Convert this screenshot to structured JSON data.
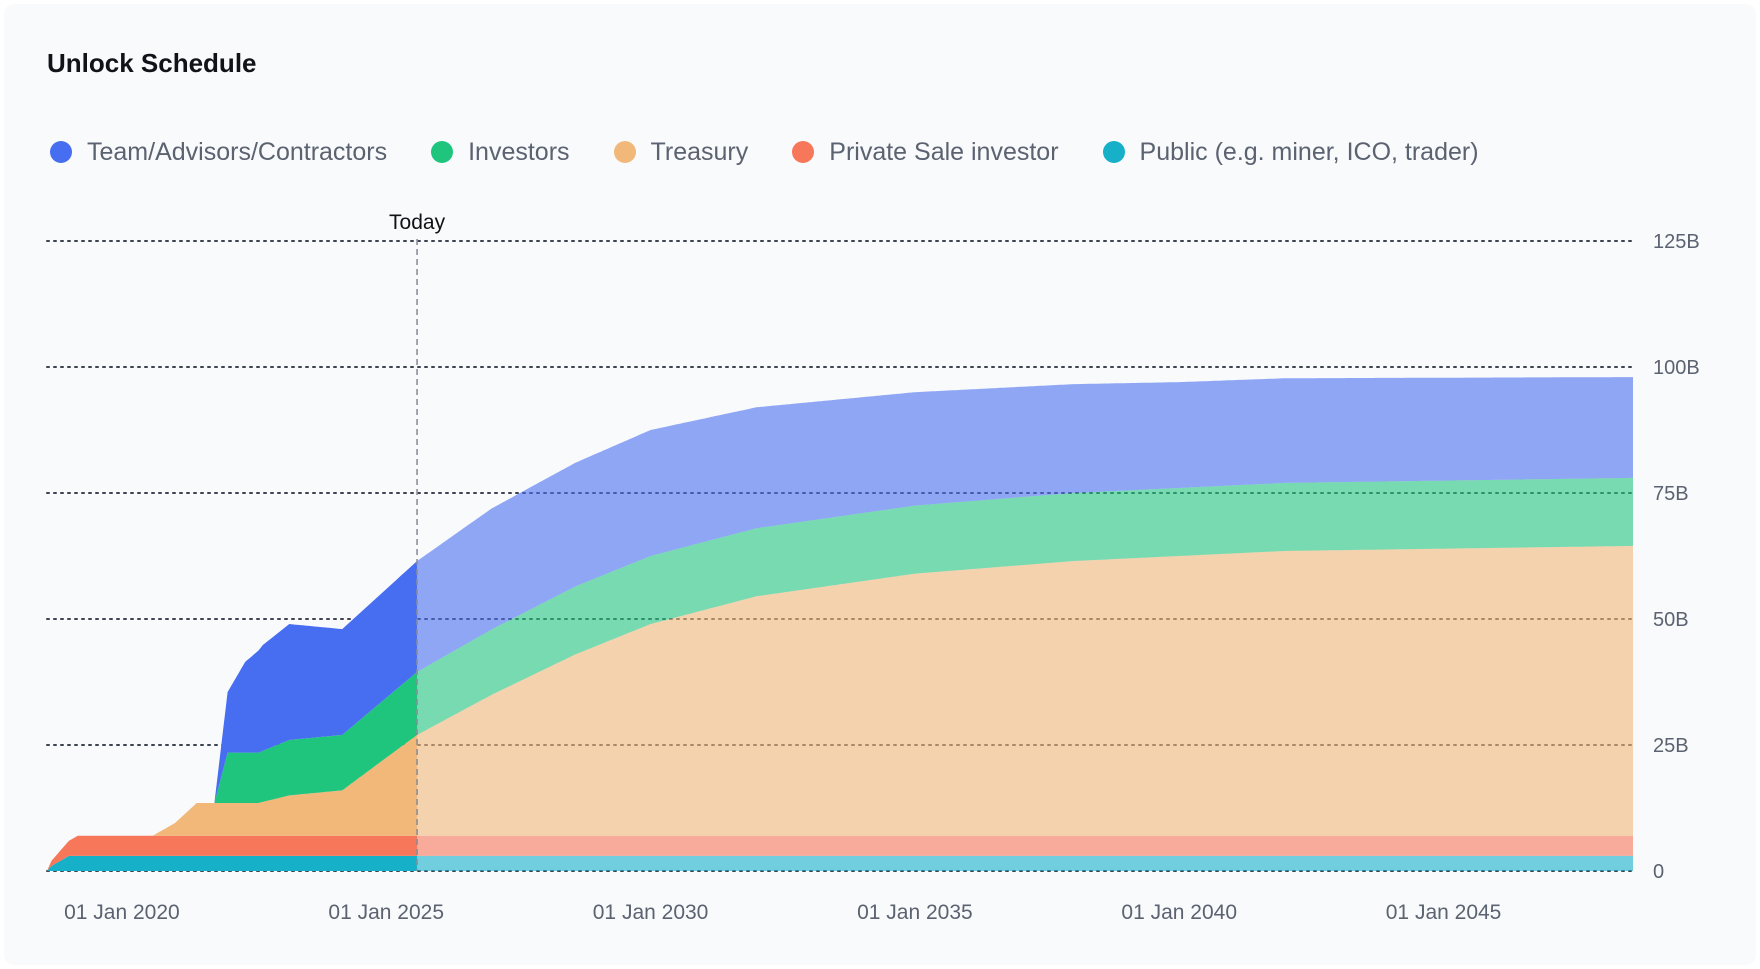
{
  "chart_data": {
    "type": "area",
    "stacked": true,
    "title": "Unlock Schedule",
    "x_ticks": [
      "01 Jan 2020",
      "01 Jan 2025",
      "01 Jan 2030",
      "01 Jan 2035",
      "01 Jan 2040",
      "01 Jan 2045"
    ],
    "y_ticks": [
      "0",
      "25B",
      "50B",
      "75B",
      "100B",
      "125B"
    ],
    "y_axis_position": "right",
    "ylim": [
      0,
      125
    ],
    "xlim": [
      "2018-08",
      "2048-08"
    ],
    "grid": "horizontal dotted",
    "today_marker": {
      "label": "Today",
      "x": "2025-08"
    },
    "series": [
      {
        "name": "Public (e.g. miner, ICO, trader)",
        "color": "#16b0c9",
        "points": [
          [
            "2018-08",
            0
          ],
          [
            "2018-09",
            1
          ],
          [
            "2019-01",
            3
          ],
          [
            "2048-08",
            3
          ]
        ]
      },
      {
        "name": "Private Sale investor",
        "color": "#f7775a",
        "points": [
          [
            "2018-08",
            0
          ],
          [
            "2018-09",
            1
          ],
          [
            "2019-01",
            3
          ],
          [
            "2019-03",
            4
          ],
          [
            "2048-08",
            4
          ]
        ]
      },
      {
        "name": "Treasury",
        "color": "#f2b87a",
        "points": [
          [
            "2018-08",
            0
          ],
          [
            "2020-08",
            0
          ],
          [
            "2021-01",
            2.5
          ],
          [
            "2021-06",
            6.5
          ],
          [
            "2022-08",
            6.5
          ],
          [
            "2023-03",
            8
          ],
          [
            "2024-03",
            9
          ],
          [
            "2025-08",
            20
          ],
          [
            "2027-01",
            28
          ],
          [
            "2028-08",
            36
          ],
          [
            "2030-01",
            42
          ],
          [
            "2032-01",
            47.5
          ],
          [
            "2035-01",
            52
          ],
          [
            "2038-01",
            54.5
          ],
          [
            "2042-01",
            56.5
          ],
          [
            "2048-08",
            57.5
          ]
        ]
      },
      {
        "name": "Investors",
        "color": "#1fc47d",
        "points": [
          [
            "2018-08",
            0
          ],
          [
            "2021-10",
            0
          ],
          [
            "2022-01",
            10
          ],
          [
            "2022-08",
            10
          ],
          [
            "2023-03",
            11
          ],
          [
            "2024-03",
            11
          ],
          [
            "2025-08",
            12.5
          ],
          [
            "2028-08",
            13.5
          ],
          [
            "2035-01",
            13.5
          ],
          [
            "2048-08",
            13.5
          ]
        ]
      },
      {
        "name": "Team/Advisors/Contractors",
        "color": "#476ef0",
        "points": [
          [
            "2018-08",
            0
          ],
          [
            "2021-10",
            0
          ],
          [
            "2022-01",
            12
          ],
          [
            "2022-05",
            18
          ],
          [
            "2022-09",
            21
          ],
          [
            "2023-03",
            23
          ],
          [
            "2024-03",
            21
          ],
          [
            "2025-08",
            22
          ],
          [
            "2027-01",
            24
          ],
          [
            "2030-01",
            25
          ],
          [
            "2035-01",
            22.5
          ],
          [
            "2040-01",
            21
          ],
          [
            "2048-08",
            20
          ]
        ]
      }
    ]
  },
  "legend": {
    "items": [
      {
        "label": "Team/Advisors/Contractors",
        "color": "#476ef0",
        "icon": "dot-icon"
      },
      {
        "label": "Investors",
        "color": "#1fc47d",
        "icon": "dot-icon"
      },
      {
        "label": "Treasury",
        "color": "#f2b87a",
        "icon": "dot-icon"
      },
      {
        "label": "Private Sale investor",
        "color": "#f7775a",
        "icon": "dot-icon"
      },
      {
        "label": "Public (e.g. miner, ICO, trader)",
        "color": "#16b0c9",
        "icon": "dot-icon"
      }
    ]
  }
}
